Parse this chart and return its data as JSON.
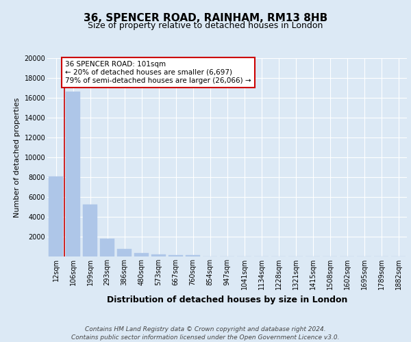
{
  "title": "36, SPENCER ROAD, RAINHAM, RM13 8HB",
  "subtitle": "Size of property relative to detached houses in London",
  "xlabel": "Distribution of detached houses by size in London",
  "ylabel": "Number of detached properties",
  "categories": [
    "12sqm",
    "106sqm",
    "199sqm",
    "293sqm",
    "386sqm",
    "480sqm",
    "573sqm",
    "667sqm",
    "760sqm",
    "854sqm",
    "947sqm",
    "1041sqm",
    "1134sqm",
    "1228sqm",
    "1321sqm",
    "1415sqm",
    "1508sqm",
    "1602sqm",
    "1695sqm",
    "1789sqm",
    "1882sqm"
  ],
  "values": [
    8050,
    16600,
    5250,
    1800,
    750,
    350,
    175,
    130,
    130,
    0,
    0,
    0,
    0,
    0,
    0,
    0,
    0,
    0,
    0,
    0,
    0
  ],
  "bar_color": "#aec6e8",
  "vline_color": "#cc0000",
  "annotation_text": "36 SPENCER ROAD: 101sqm\n← 20% of detached houses are smaller (6,697)\n79% of semi-detached houses are larger (26,066) →",
  "annotation_box_color": "#ffffff",
  "annotation_box_edge": "#cc0000",
  "ylim": [
    0,
    20000
  ],
  "yticks": [
    0,
    2000,
    4000,
    6000,
    8000,
    10000,
    12000,
    14000,
    16000,
    18000,
    20000
  ],
  "background_color": "#dce9f5",
  "plot_bg_color": "#dce9f5",
  "grid_color": "#ffffff",
  "footer": "Contains HM Land Registry data © Crown copyright and database right 2024.\nContains public sector information licensed under the Open Government Licence v3.0.",
  "title_fontsize": 11,
  "subtitle_fontsize": 9,
  "xlabel_fontsize": 9,
  "ylabel_fontsize": 8,
  "tick_fontsize": 7,
  "footer_fontsize": 6.5
}
